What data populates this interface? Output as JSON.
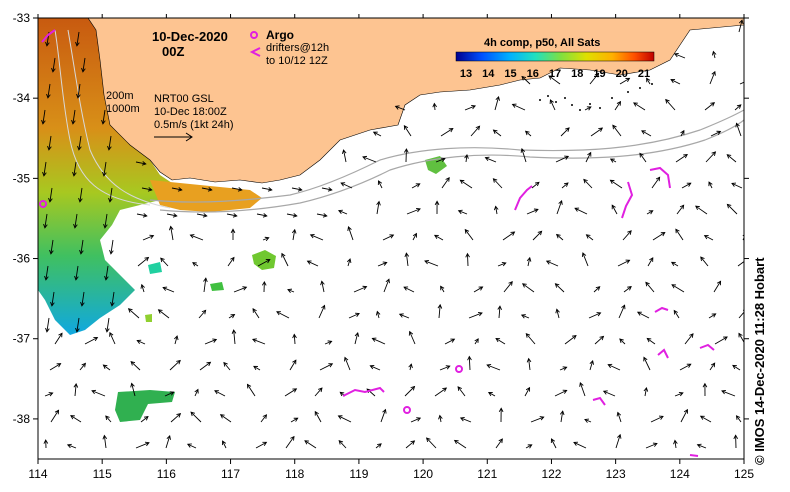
{
  "title": {
    "date": "10-Dec-2020",
    "time": "00Z"
  },
  "legend": {
    "argo_label": "Argo",
    "drifters_line1": "drifters@12h",
    "drifters_line2": "to 10/12 12Z",
    "argo_color": "#e020e0",
    "drifter_color": "#e020e0"
  },
  "annotations": {
    "isobath_200": "200m",
    "isobath_1000": "1000m",
    "model_line1": "NRT00 GSL",
    "model_line2": "10-Dec 18:00Z",
    "scale_line": "0.5m/s (1kt 24h)"
  },
  "colorbar": {
    "title": "4h comp, p50, All Sats",
    "ticks": [
      "13",
      "14",
      "15",
      "16",
      "17",
      "18",
      "19",
      "20",
      "21"
    ],
    "colors": [
      "#00008f",
      "#0050ff",
      "#00b0ff",
      "#20e0c0",
      "#80e040",
      "#e0e000",
      "#ffb000",
      "#ff5000",
      "#c00000"
    ]
  },
  "axes": {
    "x_ticks": [
      "114",
      "115",
      "116",
      "117",
      "118",
      "119",
      "120",
      "121",
      "122",
      "123",
      "124",
      "125"
    ],
    "y_ticks": [
      "-33",
      "-34",
      "-35",
      "-36",
      "-37",
      "-38"
    ],
    "x_range": [
      114,
      125
    ],
    "y_range": [
      -38.5,
      -33
    ]
  },
  "credit": "© IMOS 14-Dec-2020 11:28 Hobart",
  "colors": {
    "land": "#fdc491",
    "ocean": "#ffffff",
    "isobath": "#a8a8a8"
  }
}
